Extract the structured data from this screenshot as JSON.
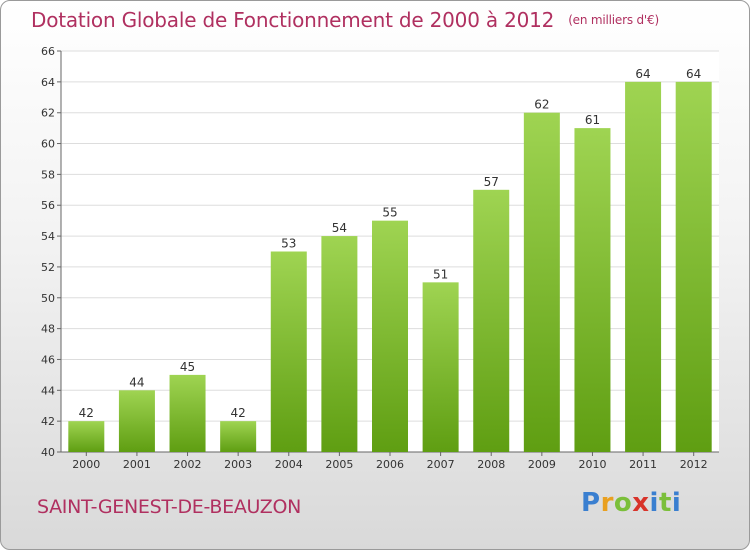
{
  "header": {
    "title": "Dotation Globale de Fonctionnement de 2000 à 2012",
    "unit": "(en milliers d'€)"
  },
  "footer": {
    "commune": "SAINT-GENEST-DE-BEAUZON",
    "logo_text": "Proxiti"
  },
  "colors": {
    "bar_top": "#9fd452",
    "bar_bottom": "#5f9e12",
    "title": "#b03060",
    "grid": "#dddddd"
  },
  "chart_data": {
    "type": "bar",
    "title": "Dotation Globale de Fonctionnement de 2000 à 2012",
    "subtitle": "(en milliers d'€)",
    "xlabel": "",
    "ylabel": "",
    "categories": [
      "2000",
      "2001",
      "2002",
      "2003",
      "2004",
      "2005",
      "2006",
      "2007",
      "2008",
      "2009",
      "2010",
      "2011",
      "2012"
    ],
    "values": [
      42,
      44,
      45,
      42,
      53,
      54,
      55,
      51,
      57,
      62,
      61,
      64,
      64
    ],
    "ylim": [
      40,
      66
    ],
    "yticks": [
      40,
      42,
      44,
      46,
      48,
      50,
      52,
      54,
      56,
      58,
      60,
      62,
      64,
      66
    ],
    "grid": true,
    "data_labels": true
  }
}
